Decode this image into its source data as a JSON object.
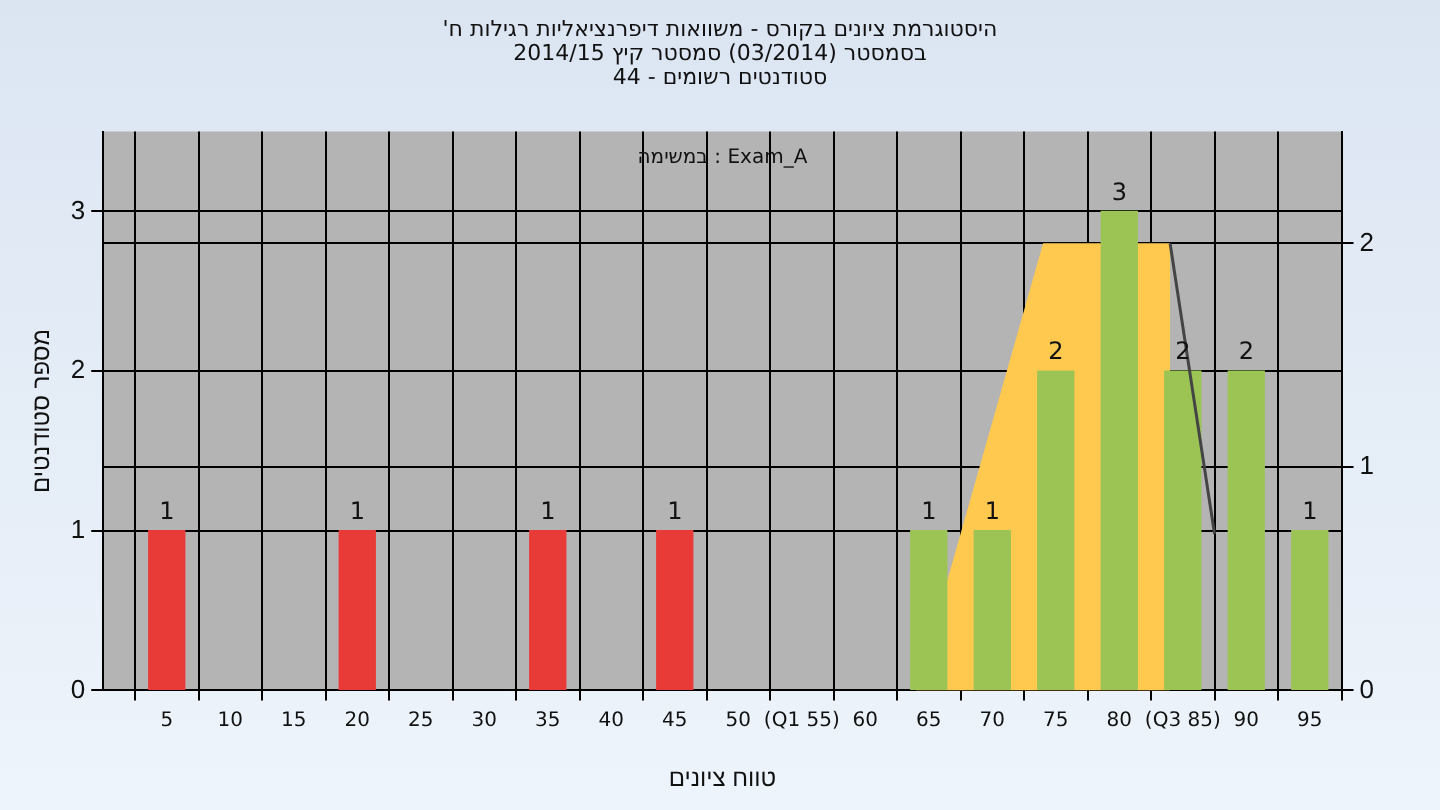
{
  "chart_data": {
    "type": "bar",
    "title": "היסטוגרמת ציונים בקורס - משוואות דיפרנציאליות רגילות ח'",
    "subtitle": "בסמסטר (03/2014) סמסטר קיץ 2014/15\nסטודנטים רשומים - 44",
    "xlabel": "טווח ציונים",
    "ylabel": "מספר סטודנטים",
    "annotations": [
      "במשימה : Exam_A"
    ],
    "series": [
      {
        "x": [
          5,
          20,
          35,
          45,
          65,
          70,
          75,
          80,
          85,
          90,
          95
        ],
        "values": [
          1,
          1,
          1,
          1,
          1,
          1,
          2,
          3,
          2,
          2,
          1
        ],
        "value_labels": [
          "1",
          "1",
          "1",
          "1",
          "1",
          "1",
          "2",
          "3",
          "2",
          "2",
          "1"
        ],
        "colors": [
          "#e83a36",
          "#e83a36",
          "#e83a36",
          "#e83a36",
          "#9cc455",
          "#9cc455",
          "#9cc455",
          "#9cc455",
          "#9cc455",
          "#9cc455",
          "#9cc455"
        ]
      },
      {
        "type": "area",
        "axis": "y2",
        "color": "#ffc94f",
        "x": [
          64,
          74,
          84,
          84
        ],
        "values": [
          0,
          2,
          2,
          0
        ]
      },
      {
        "type": "line",
        "axis": "y2",
        "color": "#444444",
        "x": [
          84,
          87.5
        ],
        "values": [
          2,
          0.7
        ]
      }
    ],
    "xlim": [
      0,
      97.5
    ],
    "xticks": [
      {
        "value": 0,
        "label": null
      },
      5,
      10,
      15,
      20,
      25,
      30,
      35,
      40,
      45,
      50,
      {
        "value": 55,
        "label": "(Q1 55)"
      },
      60,
      65,
      70,
      75,
      80,
      {
        "value": 85,
        "label": "(Q3 85)"
      },
      90,
      95
    ],
    "ylim": [
      0,
      3.5
    ],
    "yticks": [
      0,
      1,
      2,
      3
    ],
    "y2lim": [
      0,
      2.5
    ],
    "y2ticks": [
      0,
      1,
      2
    ],
    "grid": true,
    "legend": false
  }
}
